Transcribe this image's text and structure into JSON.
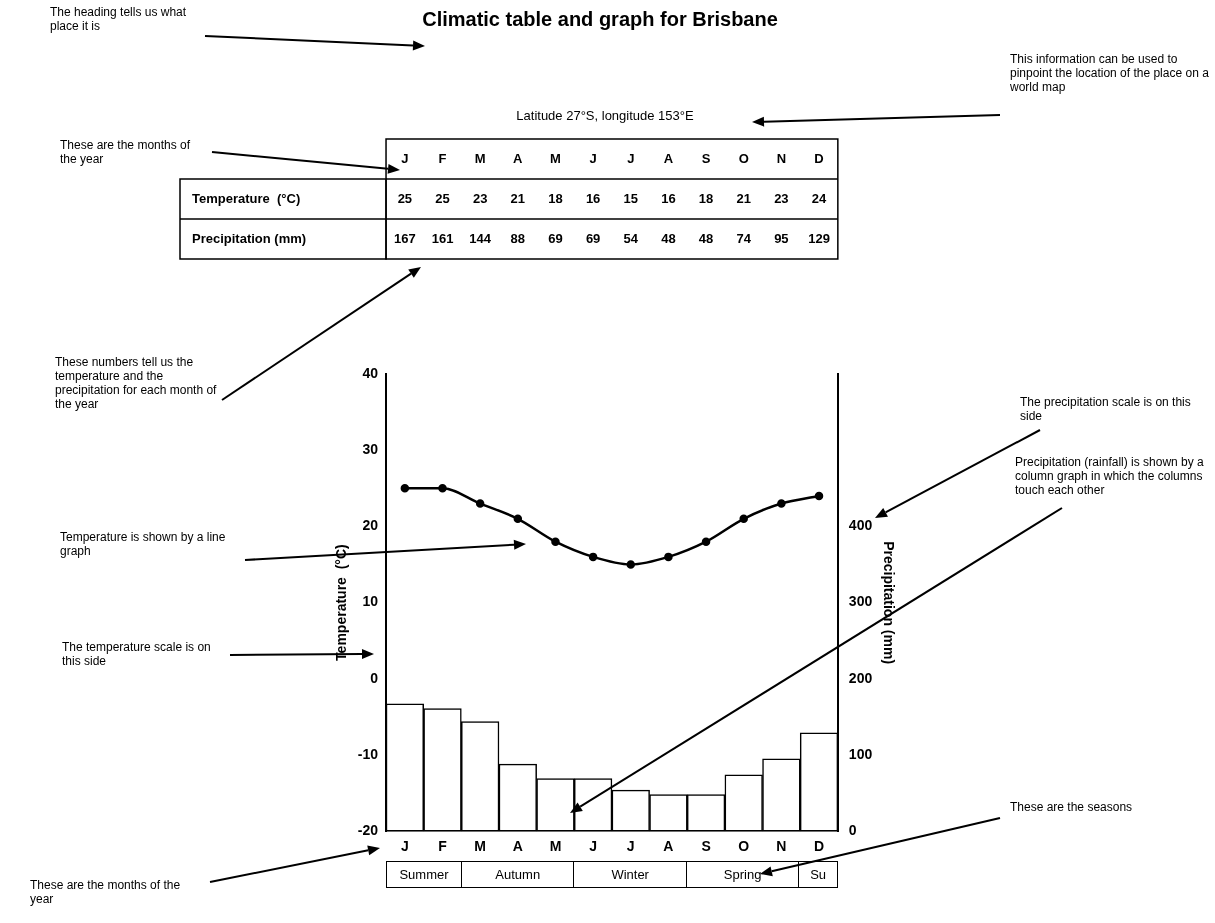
{
  "chart_data": {
    "type": "bar",
    "title": "Climatic table and graph for Brisbane",
    "subtitle": "Latitude 27°S, longitude 153°E",
    "ylabel": "Temperature  (°C)",
    "y2label": "Precipitation (mm)",
    "categories": [
      "J",
      "F",
      "M",
      "A",
      "M",
      "J",
      "J",
      "A",
      "S",
      "O",
      "N",
      "D"
    ],
    "series": [
      {
        "type": "line",
        "color": "#000000",
        "values": [
          25,
          25,
          23,
          21,
          18,
          16,
          15,
          16,
          18,
          21,
          23,
          24
        ]
      },
      {
        "axis": "y2",
        "color": "#ffffff",
        "values": [
          167,
          161,
          144,
          88,
          69,
          69,
          54,
          48,
          48,
          74,
          95,
          129
        ]
      }
    ],
    "ylim": [
      -20,
      40
    ],
    "yticks": [
      -20,
      -10,
      0,
      10,
      20,
      30,
      40
    ],
    "y2lim": [
      0,
      600
    ],
    "y2ticks": [
      0,
      100,
      200,
      300,
      400
    ],
    "grid": false,
    "legend": false,
    "marker": "circle",
    "line_style": "solid",
    "data_labels": true,
    "annotations": [
      "The heading tells us what place it is",
      "These are the months of the year",
      "This information can be used to pinpoint the location of the place on a world map",
      "These numbers tell us the temperature and the precipitation for each month of the year",
      "The precipitation scale is on this side",
      "Temperature is shown by a line graph",
      "Precipitation (rainfall) is shown by a column graph in which the columns touch each other",
      "The temperature scale is on this side",
      "These are the seasons",
      "These are the months of the year",
      "Summer",
      "Autumn",
      "Winter",
      "Spring",
      "Su"
    ]
  }
}
